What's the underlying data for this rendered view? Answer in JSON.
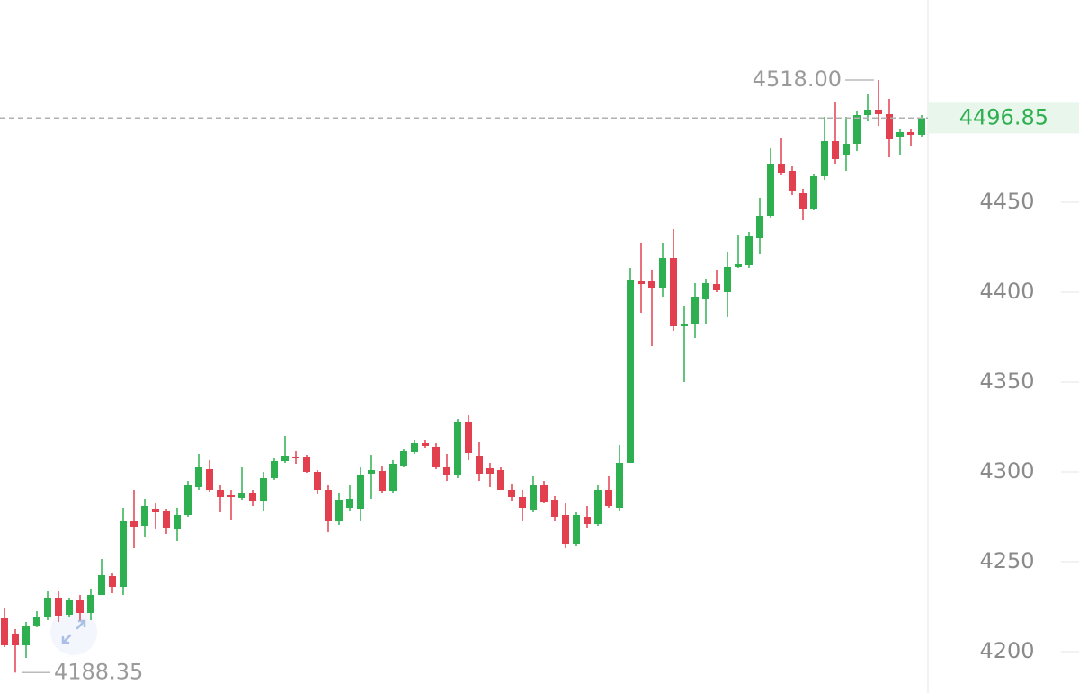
{
  "chart_data": {
    "type": "candlestick",
    "open": [
      4218.5,
      4210,
      4203.5,
      4214.5,
      4219.5,
      4230,
      4220.5,
      4229,
      4221.5,
      4231.5,
      4242,
      4236,
      4272.5,
      4270,
      4279.5,
      4278,
      4268.5,
      4276,
      4291.5,
      4301.5,
      4290,
      4287,
      4285.5,
      4288,
      4284,
      4296.5,
      4306,
      4308.5,
      4308.5,
      4300,
      4290,
      4272.5,
      4280,
      4279.5,
      4299,
      4300.5,
      4289.5,
      4303.5,
      4311,
      4316,
      4314,
      4302.5,
      4298.5,
      4328,
      4309,
      4302,
      4301,
      4290,
      4286,
      4279,
      4292.5,
      4284.5,
      4276,
      4260,
      4275,
      4271,
      4290,
      4280,
      4305,
      4406,
      4406,
      4402.5,
      4419,
      4381,
      4382.5,
      4396,
      4404.5,
      4400,
      4414,
      4415,
      4430,
      4442.5,
      4471,
      4467.5,
      4455,
      4446.5,
      4464.5,
      4484,
      4476,
      4482.5,
      4498.5,
      4501.5,
      4499,
      4486.5,
      4489,
      4487.5
    ],
    "high": [
      4224.5,
      4212.5,
      4216.5,
      4222.5,
      4233.5,
      4234,
      4230,
      4231.5,
      4235,
      4251.5,
      4243.5,
      4280,
      4290,
      4285,
      4282.5,
      4279.5,
      4280,
      4295,
      4310,
      4306.5,
      4292.5,
      4290,
      4302.5,
      4290,
      4300,
      4307.5,
      4320,
      4311.5,
      4309.5,
      4301,
      4292.5,
      4288,
      4292.5,
      4302.5,
      4309.5,
      4303.5,
      4306.5,
      4312.5,
      4317.5,
      4317.5,
      4316,
      4310,
      4329.5,
      4331.5,
      4316.5,
      4305,
      4302.5,
      4293.5,
      4290,
      4297.5,
      4295,
      4286.5,
      4282.5,
      4277.5,
      4281,
      4292.5,
      4297.5,
      4315,
      4413.5,
      4427.5,
      4412.5,
      4427.5,
      4435,
      4392.5,
      4405,
      4407.5,
      4412.5,
      4422.5,
      4431.5,
      4433.5,
      4452.5,
      4480,
      4486,
      4470,
      4457.5,
      4465.5,
      4497.5,
      4506,
      4497.5,
      4501,
      4510,
      4518,
      4507.5,
      4491,
      4491,
      4498.5
    ],
    "low": [
      4202.5,
      4188.35,
      4196.5,
      4213.5,
      4217.5,
      4216.5,
      4219.5,
      4217.5,
      4217.5,
      4231.5,
      4232.5,
      4231.5,
      4257.5,
      4264,
      4268.5,
      4265.5,
      4261.5,
      4275,
      4290,
      4289,
      4277.5,
      4273.5,
      4284.5,
      4281,
      4278.5,
      4295.5,
      4305,
      4304.5,
      4299.5,
      4287.5,
      4266.5,
      4270.5,
      4278.5,
      4272.5,
      4285,
      4288.5,
      4288.5,
      4302.5,
      4310,
      4313.5,
      4301.5,
      4295,
      4296.5,
      4306.5,
      4295,
      4291.5,
      4290,
      4284,
      4272.5,
      4277.5,
      4282.5,
      4272.5,
      4257.5,
      4258.5,
      4269,
      4270,
      4280,
      4278.5,
      4305,
      4388.5,
      4370,
      4397.5,
      4378.5,
      4350,
      4374.5,
      4382.5,
      4400,
      4386,
      4413.5,
      4413.5,
      4421,
      4441,
      4465,
      4454,
      4440,
      4445.5,
      4462.5,
      4471,
      4467.5,
      4478.5,
      4495,
      4492.5,
      4475,
      4476.5,
      4481.5,
      4486.5
    ],
    "close": [
      4203.5,
      4203.5,
      4214.5,
      4219.5,
      4230,
      4220,
      4229,
      4221.5,
      4231.5,
      4242.5,
      4236,
      4272.5,
      4269.5,
      4281,
      4277.5,
      4269,
      4276,
      4292.5,
      4302.5,
      4290,
      4286,
      4286,
      4288,
      4284,
      4296.5,
      4306,
      4309,
      4307.5,
      4300,
      4290,
      4272.5,
      4284.5,
      4285,
      4298.5,
      4301,
      4289.5,
      4304.5,
      4311.5,
      4316,
      4314.5,
      4302.5,
      4298.5,
      4328,
      4310.5,
      4299,
      4299,
      4290,
      4286,
      4280,
      4292.5,
      4283.5,
      4275,
      4260,
      4276,
      4271,
      4290,
      4281,
      4305,
      4406.5,
      4404.5,
      4402.5,
      4419,
      4381,
      4382.5,
      4397.5,
      4405,
      4401,
      4414,
      4415.5,
      4431,
      4442.5,
      4471,
      4466,
      4456,
      4446.5,
      4464.5,
      4484,
      4474,
      4482.5,
      4498.5,
      4501.5,
      4499,
      4485,
      4489,
      4487.5,
      4496.85
    ],
    "up_color": "#2fb050",
    "down_color": "#e2404f",
    "ylim": [
      4177,
      4562.5
    ],
    "yticks": [
      4200,
      4250,
      4300,
      4350,
      4400,
      4450
    ],
    "high_marker": {
      "value": 4518,
      "label": "4518.00"
    },
    "low_marker": 4188.35,
    "last_price": 4496.85
  }
}
